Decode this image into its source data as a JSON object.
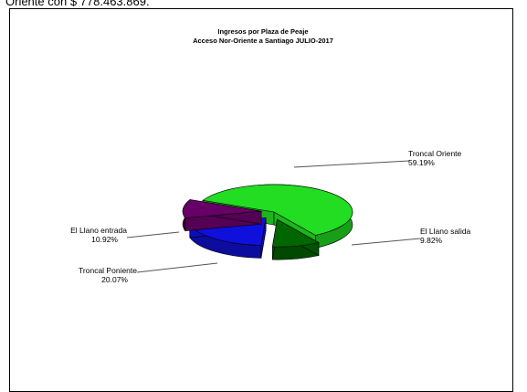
{
  "page": {
    "top_text": "Oriente con $ 778.463.869."
  },
  "chart_data": {
    "type": "pie",
    "title": "Ingresos por Plaza de Peaje",
    "subtitle": "Acceso Nor-Oriente a Santiago JULIO-2017",
    "slices": [
      {
        "name": "Troncal Oriente",
        "value": 59.19,
        "label": "59.19%",
        "color": "#22dd22"
      },
      {
        "name": "El Llano salida",
        "value": 9.82,
        "label": "9.82%",
        "color": "#006600"
      },
      {
        "name": "Troncal Poniente",
        "value": 20.07,
        "label": "20.07%",
        "color": "#1010dd"
      },
      {
        "name": "El Llano entrada",
        "value": 10.92,
        "label": "10.92%",
        "color": "#660066"
      }
    ]
  }
}
